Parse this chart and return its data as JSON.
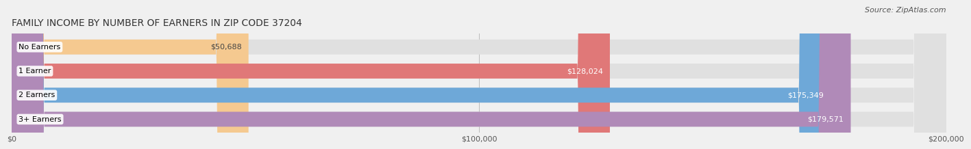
{
  "title": "FAMILY INCOME BY NUMBER OF EARNERS IN ZIP CODE 37204",
  "source": "Source: ZipAtlas.com",
  "categories": [
    "No Earners",
    "1 Earner",
    "2 Earners",
    "3+ Earners"
  ],
  "values": [
    50688,
    128024,
    175349,
    179571
  ],
  "bar_colors": [
    "#f5c990",
    "#e07878",
    "#6ea8d8",
    "#b08ab8"
  ],
  "bar_label_colors": [
    "#444444",
    "#ffffff",
    "#ffffff",
    "#ffffff"
  ],
  "labels": [
    "$50,688",
    "$128,024",
    "$175,349",
    "$179,571"
  ],
  "xlim": [
    0,
    200000
  ],
  "xticklabels": [
    "$0",
    "$100,000",
    "$200,000"
  ],
  "background_color": "#f0f0f0",
  "bar_background_color": "#e0e0e0",
  "title_fontsize": 10,
  "source_fontsize": 8,
  "label_fontsize": 8,
  "category_fontsize": 8,
  "tick_fontsize": 8
}
